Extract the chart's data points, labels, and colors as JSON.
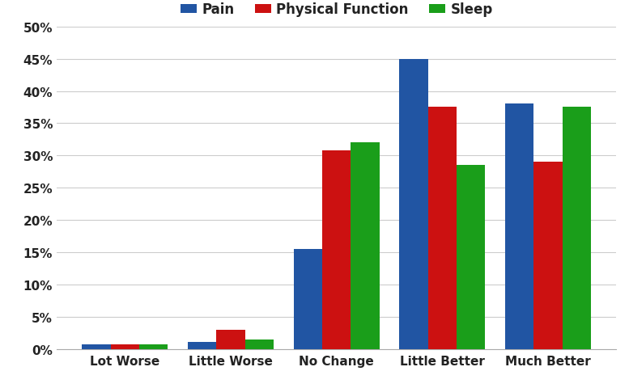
{
  "categories": [
    "Lot Worse",
    "Little Worse",
    "No Change",
    "Little Better",
    "Much Better"
  ],
  "series": {
    "Pain": [
      0.7,
      1.1,
      15.5,
      45.0,
      38.0
    ],
    "Physical Function": [
      0.8,
      3.0,
      30.8,
      37.5,
      29.0
    ],
    "Sleep": [
      0.7,
      1.5,
      32.0,
      28.5,
      37.5
    ]
  },
  "colors": {
    "Pain": "#2155a3",
    "Physical Function": "#cc1111",
    "Sleep": "#1a9e1a"
  },
  "legend_labels": [
    "Pain",
    "Physical Function",
    "Sleep"
  ],
  "ylim": [
    0,
    50
  ],
  "yticks": [
    0,
    5,
    10,
    15,
    20,
    25,
    30,
    35,
    40,
    45,
    50
  ],
  "bar_width": 0.27,
  "figsize": [
    7.77,
    4.81
  ],
  "dpi": 100,
  "background_color": "#ffffff",
  "grid_color": "#cccccc",
  "tick_labelsize": 11,
  "legend_fontsize": 12
}
